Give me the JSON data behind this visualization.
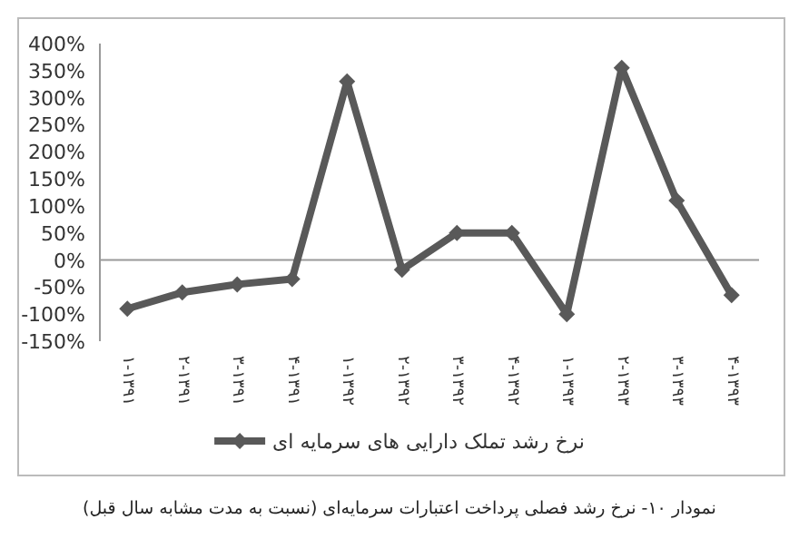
{
  "chart_data": {
    "type": "line",
    "categories": [
      "۱-۱۳۹۱",
      "۲-۱۳۹۱",
      "۳-۱۳۹۱",
      "۴-۱۳۹۱",
      "۱-۱۳۹۲",
      "۲-۱۳۹۲",
      "۳-۱۳۹۲",
      "۴-۱۳۹۲",
      "۱-۱۳۹۳",
      "۲-۱۳۹۳",
      "۳-۱۳۹۳",
      "۴-۱۳۹۳"
    ],
    "series": [
      {
        "name": "نرخ رشد تملک دارایی های سرمایه ای",
        "color": "#595959",
        "values": [
          -90,
          -60,
          -45,
          -35,
          330,
          -18,
          50,
          50,
          -100,
          355,
          110,
          -65
        ]
      }
    ],
    "ylim": [
      -150,
      400
    ],
    "yticks": [
      {
        "value": -150,
        "label": "-150%"
      },
      {
        "value": -100,
        "label": "-100%"
      },
      {
        "value": -50,
        "label": "-50%"
      },
      {
        "value": 0,
        "label": "0%"
      },
      {
        "value": 50,
        "label": "50%"
      },
      {
        "value": 100,
        "label": "100%"
      },
      {
        "value": 150,
        "label": "150%"
      },
      {
        "value": 200,
        "label": "200%"
      },
      {
        "value": 250,
        "label": "250%"
      },
      {
        "value": 300,
        "label": "300%"
      },
      {
        "value": 350,
        "label": "350%"
      },
      {
        "value": 400,
        "label": "400%"
      }
    ],
    "marker": "diamond",
    "line_style": "solid",
    "legend": "bottom",
    "annotations": [
      "نمودار ۱۰- نرخ رشد فصلی پرداخت اعتبارات سرمایه‌ای (نسبت به مدت مشابه سال قبل)"
    ]
  }
}
